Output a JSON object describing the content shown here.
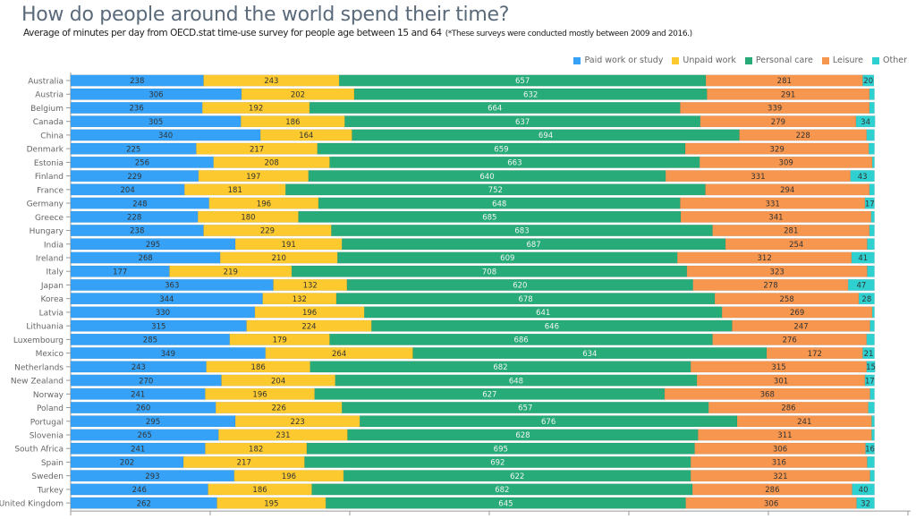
{
  "chart_data": {
    "type": "bar",
    "orientation": "horizontal",
    "stacked": true,
    "title": "How do people around the world spend their time?",
    "subtitle": "Average of minutes per day from OECD.stat time-use survey for people age between 15 and 64",
    "subtitle_note": "(*These surveys were conducted mostly between 2009 and 2016.)",
    "xlim": [
      0,
      1500
    ],
    "xticks": [
      "0",
      "250",
      "500",
      "750",
      "1000",
      "1250",
      "1500"
    ],
    "legend_position": "top-right",
    "categories": [
      "Australia",
      "Austria",
      "Belgium",
      "Canada",
      "China",
      "Denmark",
      "Estonia",
      "Finland",
      "France",
      "Germany",
      "Greece",
      "Hungary",
      "India",
      "Ireland",
      "Italy",
      "Japan",
      "Korea",
      "Latvia",
      "Lithuania",
      "Luxembourg",
      "Mexico",
      "Netherlands",
      "New Zealand",
      "Norway",
      "Poland",
      "Portugal",
      "Slovenia",
      "South Africa",
      "Spain",
      "Sweden",
      "Turkey",
      "United Kingdom"
    ],
    "series": [
      {
        "name": "Paid work or study",
        "color": "#35a2f7",
        "values": [
          238,
          306,
          236,
          305,
          340,
          225,
          256,
          229,
          204,
          248,
          228,
          238,
          295,
          268,
          177,
          363,
          344,
          330,
          315,
          285,
          349,
          243,
          270,
          241,
          260,
          295,
          265,
          241,
          202,
          293,
          246,
          262
        ]
      },
      {
        "name": "Unpaid work",
        "color": "#fcc92f",
        "values": [
          243,
          202,
          192,
          186,
          164,
          217,
          208,
          197,
          181,
          196,
          180,
          229,
          191,
          210,
          219,
          132,
          132,
          196,
          224,
          179,
          264,
          186,
          204,
          196,
          226,
          223,
          231,
          182,
          217,
          196,
          186,
          195
        ]
      },
      {
        "name": "Personal care",
        "color": "#26ab79",
        "values": [
          657,
          632,
          664,
          637,
          694,
          659,
          663,
          640,
          752,
          648,
          685,
          683,
          687,
          609,
          708,
          620,
          678,
          641,
          646,
          686,
          634,
          682,
          648,
          627,
          657,
          676,
          628,
          695,
          692,
          622,
          682,
          645
        ]
      },
      {
        "name": "Leisure",
        "color": "#f7964f",
        "values": [
          281,
          291,
          339,
          279,
          228,
          329,
          309,
          331,
          294,
          331,
          341,
          281,
          254,
          312,
          323,
          278,
          258,
          269,
          247,
          276,
          172,
          315,
          301,
          368,
          286,
          241,
          311,
          306,
          316,
          321,
          286,
          306
        ]
      },
      {
        "name": "Other",
        "color": "#2fd0d0",
        "values": [
          20,
          9,
          9,
          34,
          14,
          10,
          4,
          43,
          9,
          17,
          6,
          9,
          13,
          41,
          13,
          47,
          28,
          4,
          8,
          14,
          21,
          15,
          17,
          8,
          11,
          5,
          5,
          16,
          13,
          8,
          40,
          32
        ]
      }
    ]
  }
}
